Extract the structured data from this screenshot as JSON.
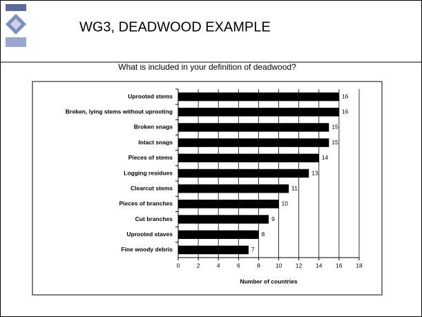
{
  "slide_title": "WG3, DEADWOOD EXAMPLE",
  "chart_data": {
    "type": "bar",
    "orientation": "horizontal",
    "title": "What is included in your definition of deadwood?",
    "categories": [
      "Uprooted stems",
      "Broken, lying stems without uprooting",
      "Broken snags",
      "Intact snags",
      "Pieces of stems",
      "Logging residues",
      "Clearcut stems",
      "Pieces of branches",
      "Cut branches",
      "Uprooted staves",
      "Fine woody debris"
    ],
    "values": [
      16,
      16,
      15,
      15,
      14,
      13,
      11,
      10,
      9,
      8,
      7
    ],
    "color": "#000000",
    "xlabel": "Number of countries",
    "xlim": [
      0,
      18
    ],
    "xticks": [
      0,
      2,
      4,
      6,
      8,
      10,
      12,
      14,
      16,
      18
    ],
    "grid": true
  }
}
